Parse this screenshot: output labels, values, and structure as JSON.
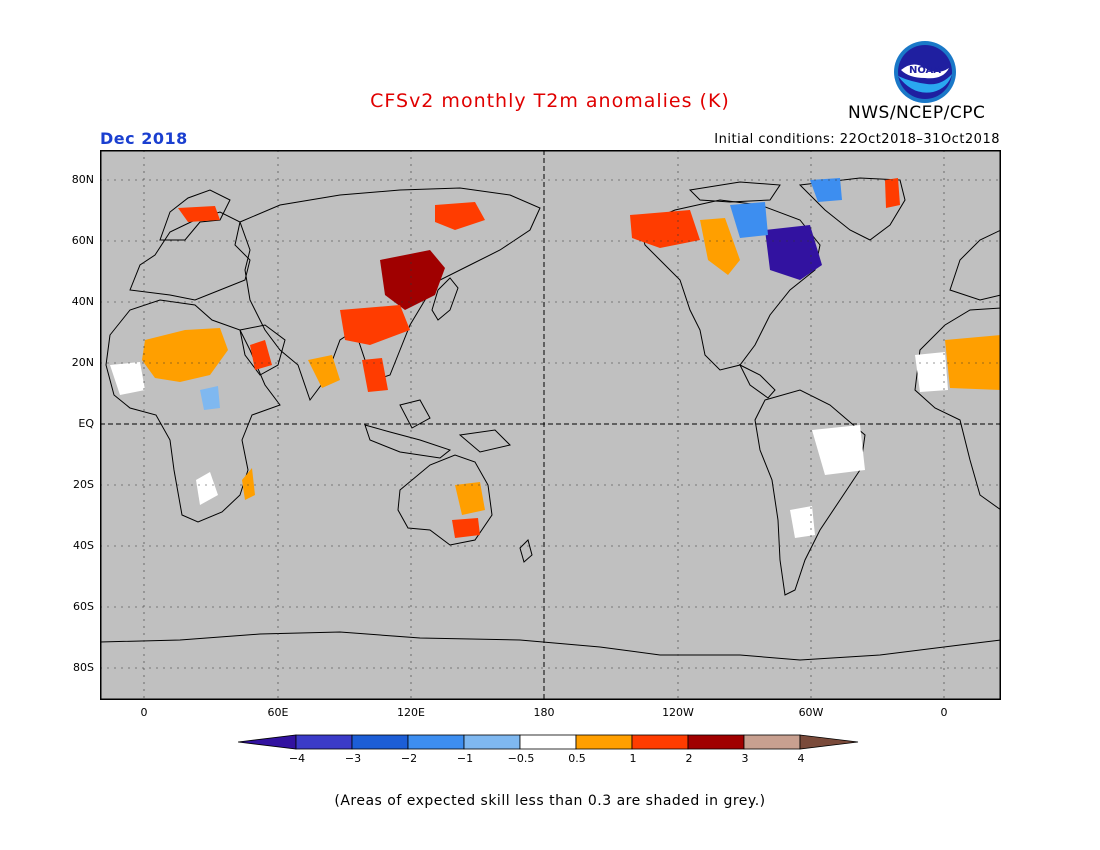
{
  "title": "CFSv2 monthly T2m anomalies (K)",
  "month": "Dec 2018",
  "initial_conditions": "Initial conditions: 22Oct2018–31Oct2018",
  "agency": "NWS/NCEP/CPC",
  "logo_text": "NOAA",
  "note": "(Areas of expected skill less than 0.3 are shaded in grey.)",
  "map": {
    "lat_labels": [
      "80N",
      "60N",
      "40N",
      "20N",
      "EQ",
      "20S",
      "40S",
      "60S",
      "80S"
    ],
    "lon_labels": [
      "0",
      "60E",
      "120E",
      "180",
      "120W",
      "60W",
      "0"
    ],
    "ocean_color": "#c0c0c0"
  },
  "colorbar": {
    "labels": [
      "−4",
      "−3",
      "−2",
      "−1",
      "−0.5",
      "0.5",
      "1",
      "2",
      "3",
      "4"
    ],
    "colors": [
      "#3212a0",
      "#3b3bc8",
      "#1c5ed6",
      "#3d8ef0",
      "#7fb8f0",
      "#ffffff",
      "#ff9f00",
      "#ff3c00",
      "#a00000",
      "#c8a090",
      "#7a4a3a"
    ]
  }
}
